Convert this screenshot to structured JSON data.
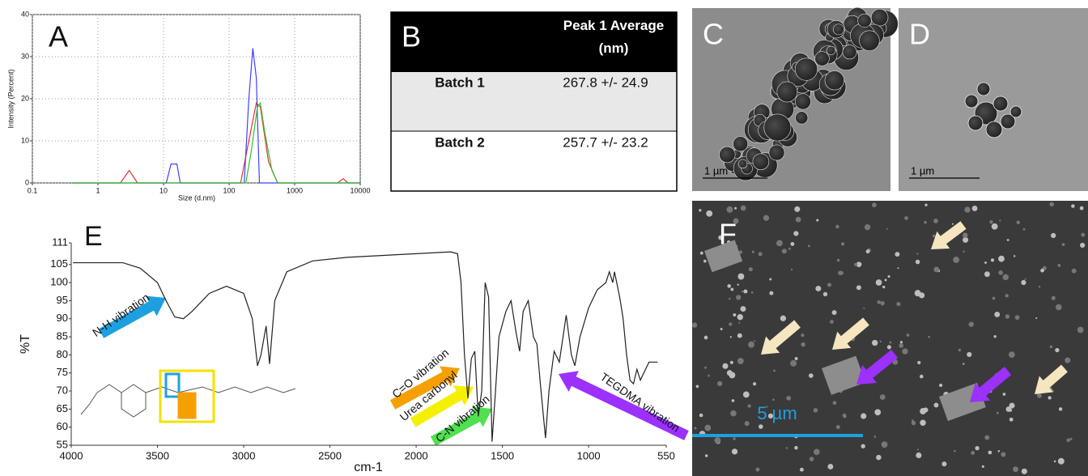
{
  "chart_data": [
    {
      "type": "line",
      "label": "A",
      "xlabel": "Size (d.nm)",
      "ylabel": "Intensity (Percent)",
      "xscale": "log",
      "xlim": [
        0.1,
        10000
      ],
      "xticks": [
        0.1,
        1,
        10,
        100,
        1000,
        10000
      ],
      "ylim": [
        0,
        40
      ],
      "yticks": [
        0,
        10,
        20,
        30,
        40
      ],
      "grid": true,
      "series": [
        {
          "color": "#e83030",
          "x": [
            0.4,
            2.2,
            3,
            4,
            150,
            200,
            260,
            300,
            400,
            550,
            4500,
            5500,
            6500,
            10000
          ],
          "values": [
            0,
            0,
            3,
            0,
            0,
            10,
            19,
            18,
            5,
            0,
            0,
            1,
            0,
            0
          ]
        },
        {
          "color": "#4040ff",
          "x": [
            0.4,
            11,
            13,
            16,
            18,
            170,
            200,
            230,
            260,
            290,
            10000
          ],
          "values": [
            0,
            0,
            4.5,
            4.5,
            0,
            0,
            20,
            32,
            25,
            0,
            0
          ]
        },
        {
          "color": "#30c030",
          "x": [
            0.4,
            180,
            220,
            270,
            300,
            350,
            450,
            550,
            10000
          ],
          "values": [
            0,
            0,
            8,
            18,
            19,
            12,
            3,
            0,
            0
          ]
        }
      ]
    },
    {
      "type": "line",
      "label": "E",
      "xlabel": "cm-1",
      "ylabel": "%T",
      "xlim": [
        4000,
        550
      ],
      "xticks": [
        4000,
        3500,
        3000,
        2500,
        2000,
        1500,
        1000,
        550
      ],
      "ylim": [
        55,
        111
      ],
      "yticks": [
        55,
        60,
        65,
        70,
        75,
        80,
        85,
        90,
        95,
        100,
        105,
        111
      ],
      "grid": false,
      "series": [
        {
          "color": "#222222",
          "x": [
            3990,
            3700,
            3600,
            3500,
            3450,
            3400,
            3350,
            3300,
            3200,
            3100,
            3000,
            2950,
            2920,
            2900,
            2870,
            2850,
            2820,
            2750,
            2600,
            2400,
            2000,
            1800,
            1760,
            1740,
            1720,
            1700,
            1680,
            1660,
            1640,
            1620,
            1600,
            1580,
            1560,
            1540,
            1520,
            1480,
            1450,
            1420,
            1400,
            1380,
            1350,
            1320,
            1300,
            1280,
            1250,
            1230,
            1200,
            1170,
            1130,
            1100,
            1080,
            1050,
            1000,
            950,
            900,
            880,
            860,
            850,
            820,
            800,
            780,
            760,
            740,
            720,
            700,
            650,
            600
          ],
          "values": [
            105.5,
            105.5,
            104,
            100,
            95,
            90.5,
            90,
            92,
            97,
            99,
            97,
            90,
            77,
            80,
            88,
            77.5,
            95,
            103,
            106,
            107,
            108,
            108.5,
            108,
            100,
            80,
            68,
            79,
            81,
            63,
            70,
            100,
            96,
            56,
            70,
            85,
            92,
            95,
            86,
            81,
            92,
            95,
            85,
            83,
            72,
            57,
            70,
            81,
            78,
            91,
            80,
            77,
            85,
            93,
            98,
            100,
            103,
            100,
            103,
            96,
            90,
            80,
            73,
            72,
            76,
            73,
            78,
            78
          ]
        }
      ],
      "annotations": [
        "N-H vibration",
        "C=O vibration",
        "Urea carbonyl",
        "C-N vibration",
        "TEGDMA vibration"
      ]
    }
  ],
  "table": {
    "label": "B",
    "header": "Peak 1 Average (nm)",
    "rows": [
      [
        "Batch 1",
        "267.8 +/- 24.9"
      ],
      [
        "Batch 2",
        "257.7 +/- 23.2"
      ]
    ]
  },
  "images": [
    {
      "label": "C",
      "scale_bar": "1 µm"
    },
    {
      "label": "D",
      "scale_bar": "1 µm"
    },
    {
      "label": "F",
      "scale_bar": "5 µm"
    }
  ]
}
